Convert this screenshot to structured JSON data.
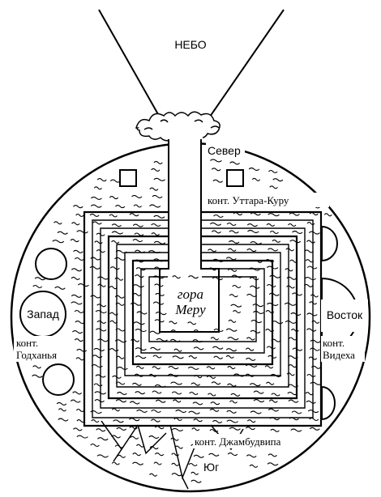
{
  "labels": {
    "sky": "НЕБО",
    "north": "Север",
    "north_continent": "конт. Уттара-Куру",
    "west": "Запад",
    "west_continent_line1": "конт.",
    "west_continent_line2": "Годханья",
    "east": "Восток",
    "east_continent_line1": "конт.",
    "east_continent_line2": "Видеха",
    "mount_line1": "гора",
    "mount_line2": "Меру",
    "south_continent": "конт. Джамбудвипа",
    "south": "Юг"
  },
  "colors": {
    "ink": "#000000",
    "paper": "#ffffff"
  }
}
